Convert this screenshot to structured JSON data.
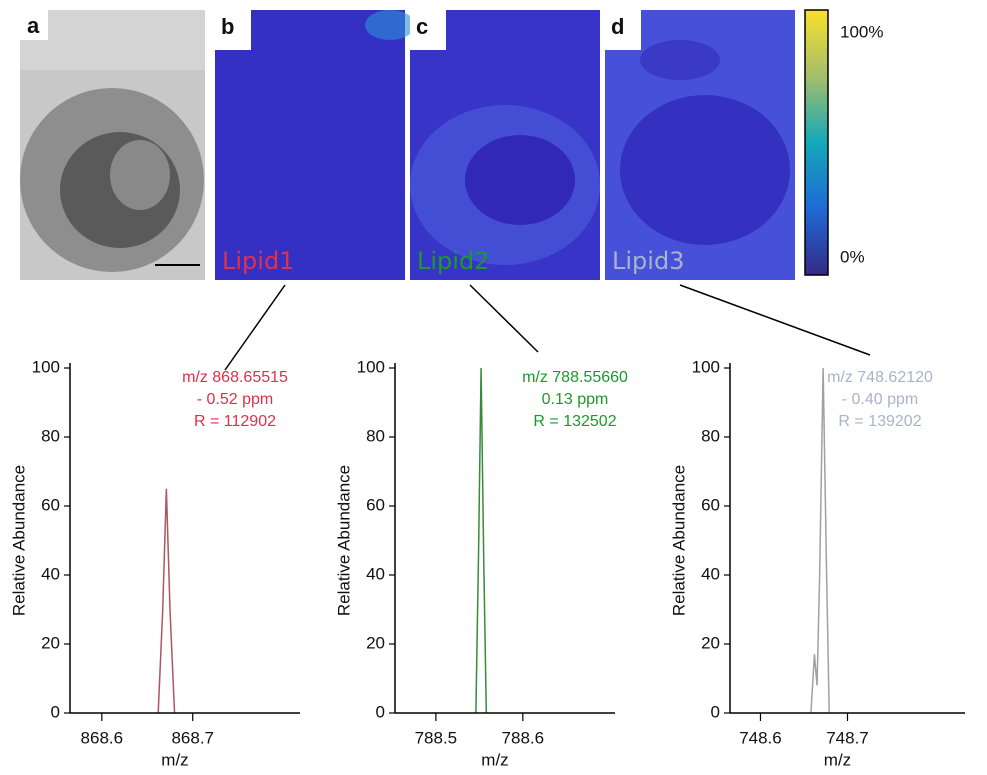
{
  "panels": [
    {
      "letter": "a"
    },
    {
      "letter": "b",
      "label": "Lipid1"
    },
    {
      "letter": "c",
      "label": "Lipid2"
    },
    {
      "letter": "d",
      "label": "Lipid3"
    }
  ],
  "colorbar": {
    "max_label": "100%",
    "min_label": "0%"
  },
  "chart_data": [
    {
      "type": "line",
      "ylabel": "Relative Abundance",
      "xlabel": "m/z",
      "annotations": [
        "m/z 868.65515",
        "- 0.52 ppm",
        "R = 112902"
      ],
      "annotation_color": "#e0304a",
      "x": [
        868.662,
        868.667,
        868.671,
        868.675,
        868.68
      ],
      "series": [
        {
          "color": "#b05462",
          "values": [
            0,
            30,
            65,
            30,
            0
          ]
        }
      ],
      "xlim": [
        868.565,
        868.818
      ],
      "xticks": [
        868.6,
        868.7
      ],
      "ylim": [
        0,
        100
      ],
      "yticks": [
        0,
        20,
        40,
        60,
        80,
        100
      ]
    },
    {
      "type": "line",
      "ylabel": "Relative Abundance",
      "xlabel": "m/z",
      "annotations": [
        "m/z 788.55660",
        "0.13 ppm",
        "R = 132502"
      ],
      "annotation_color": "#1a9a2a",
      "x": [
        788.546,
        788.549,
        788.552,
        788.555,
        788.558
      ],
      "series": [
        {
          "color": "#3a8a3a",
          "values": [
            0,
            45,
            100,
            45,
            0
          ]
        }
      ],
      "xlim": [
        788.453,
        788.706
      ],
      "xticks": [
        788.5,
        788.6
      ],
      "ylim": [
        0,
        100
      ],
      "yticks": [
        0,
        20,
        40,
        60,
        80,
        100
      ]
    },
    {
      "type": "line",
      "ylabel": "Relative Abundance",
      "xlabel": "m/z",
      "annotations": [
        "m/z 748.62120",
        "- 0.40 ppm",
        "R = 139202"
      ],
      "annotation_color": "#a8b4c8",
      "x": [
        748.658,
        748.662,
        748.665,
        748.668,
        748.672,
        748.676,
        748.679
      ],
      "series": [
        {
          "color": "#a0a0a0",
          "values": [
            0,
            17,
            8,
            40,
            100,
            40,
            0
          ]
        }
      ],
      "xlim": [
        748.565,
        748.835
      ],
      "xticks": [
        748.6,
        748.7
      ],
      "ylim": [
        0,
        100
      ],
      "yticks": [
        0,
        20,
        40,
        60,
        80,
        100
      ]
    }
  ]
}
